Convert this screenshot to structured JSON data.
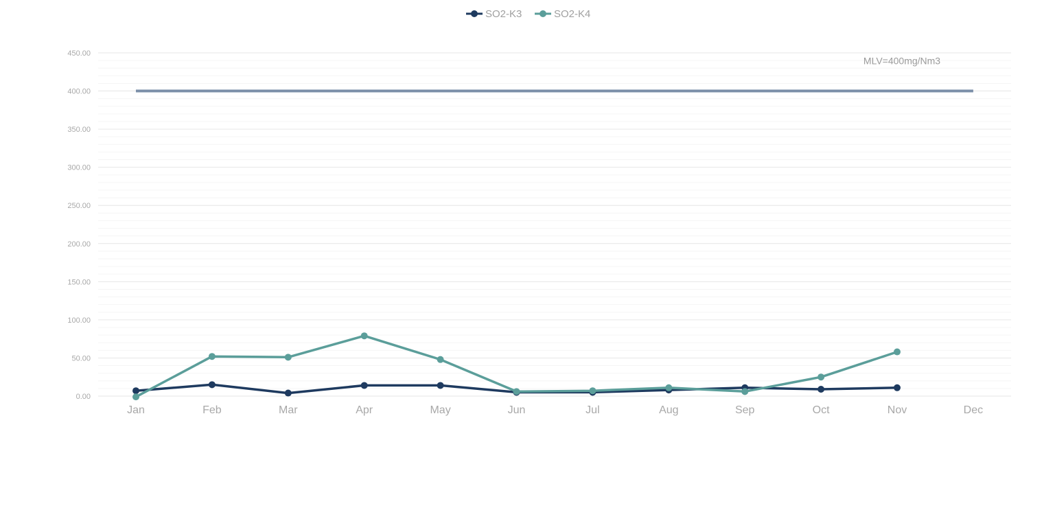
{
  "chart_data": {
    "type": "line",
    "categories": [
      "Jan",
      "Feb",
      "Mar",
      "Apr",
      "May",
      "Jun",
      "Jul",
      "Aug",
      "Sep",
      "Oct",
      "Nov",
      "Dec"
    ],
    "series": [
      {
        "name": "SO2-K3",
        "color": "#1e3a5f",
        "values": [
          7,
          15,
          4,
          14,
          14,
          5,
          5,
          8,
          11,
          9,
          11,
          null
        ]
      },
      {
        "name": "SO2-K4",
        "color": "#5b9e9a",
        "values": [
          -1,
          52,
          51,
          79,
          48,
          6,
          7,
          11,
          6,
          25,
          58,
          null
        ]
      }
    ],
    "reference_line": {
      "value": 400,
      "label": "MLV=400mg/Nm3",
      "color": "#7b8fa8"
    },
    "ylim": [
      0,
      450
    ],
    "yticks": [
      "0.00",
      "50.00",
      "100.00",
      "150.00",
      "200.00",
      "250.00",
      "300.00",
      "350.00",
      "400.00",
      "450.00"
    ],
    "ytick_values": [
      0,
      50,
      100,
      150,
      200,
      250,
      300,
      350,
      400,
      450
    ],
    "grid": true,
    "legend_position": "top-center",
    "title": "",
    "xlabel": "",
    "ylabel": ""
  }
}
